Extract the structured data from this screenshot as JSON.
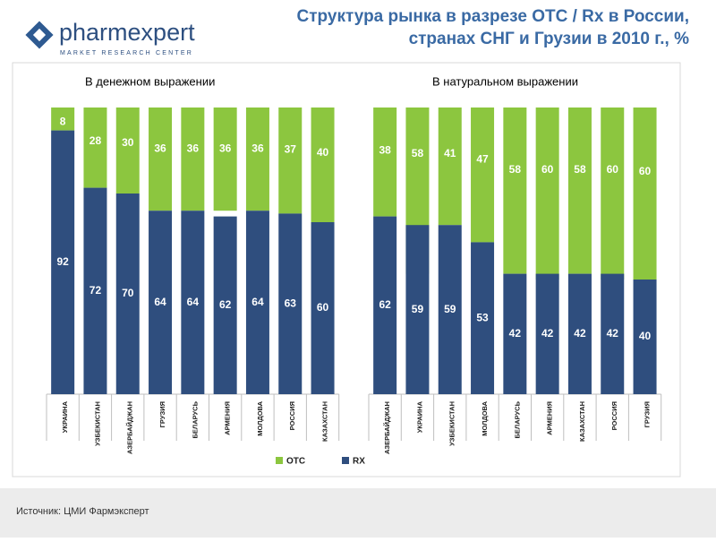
{
  "header": {
    "logo": "pharmexpert",
    "logo_tagline": "MARKET RESEARCH CENTER"
  },
  "chart_data": {
    "type": "bar",
    "stacked": true,
    "title": [
      "Структура рынка в разрезе ОТС / Rx в России,",
      "странах СНГ и Грузии в 2010 г., %"
    ],
    "ylim": [
      0,
      100
    ],
    "series": [
      {
        "name": "OTC",
        "color": "#8cc63f"
      },
      {
        "name": "RX",
        "color": "#2f4e7e"
      }
    ],
    "panels": [
      {
        "title": "В денежном выражении",
        "categories": [
          "УКРАИНА",
          "УЗБЕКИСТАН",
          "АЗЕРБАЙДЖАН",
          "ГРУЗИЯ",
          "БЕЛАРУСЬ",
          "АРМЕНИЯ",
          "МОЛДОВА",
          "РОССИЯ",
          "КАЗАХСТАН"
        ],
        "values": [
          [
            8,
            28,
            30,
            36,
            36,
            36,
            36,
            37,
            40
          ],
          [
            92,
            72,
            70,
            64,
            64,
            62,
            64,
            63,
            60
          ]
        ]
      },
      {
        "title": "В натуральном выражении",
        "categories": [
          "АЗЕРБАЙДЖАН",
          "УКРАИНА",
          "УЗБЕКИСТАН",
          "МОЛДОВА",
          "БЕЛАРУСЬ",
          "АРМЕНИЯ",
          "КАЗАХСТАН",
          "РОССИЯ",
          "ГРУЗИЯ"
        ],
        "values": [
          [
            38,
            58,
            41,
            47,
            58,
            60,
            58,
            60,
            60
          ],
          [
            62,
            59,
            59,
            53,
            42,
            42,
            42,
            42,
            40
          ]
        ]
      }
    ]
  },
  "footer": {
    "source": "Источник: ЦМИ Фармэксперт"
  }
}
